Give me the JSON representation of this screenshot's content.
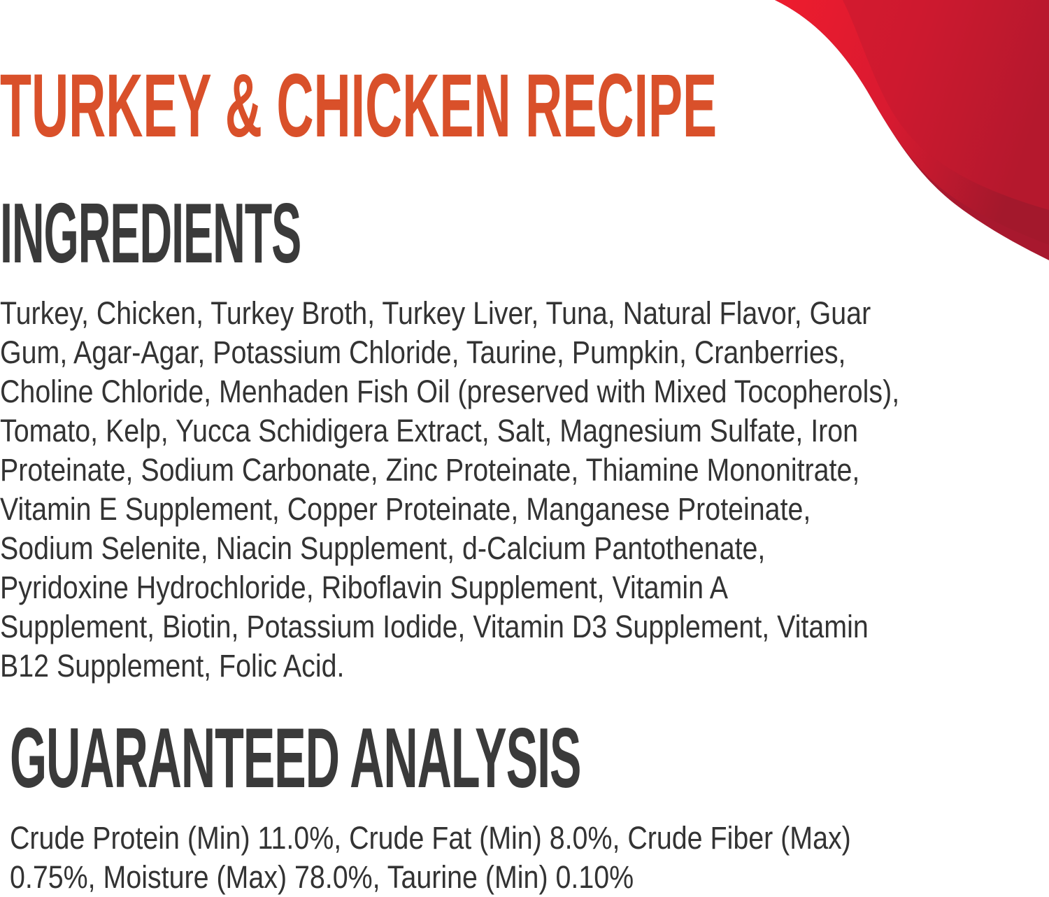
{
  "colors": {
    "accent_orange": "#d9502a",
    "heading": "#3a3a3a",
    "swoosh_red": "#e51b2d",
    "swoosh_dark": "#a8182e"
  },
  "recipe_title": "TURKEY & CHICKEN RECIPE",
  "ingredients": {
    "title": "INGREDIENTS",
    "lines": [
      "Turkey, Chicken, Turkey Broth, Turkey Liver, Tuna, Natural Flavor, Guar",
      "Gum, Agar-Agar, Potassium Chloride, Taurine, Pumpkin, Cranberries,",
      "Choline Chloride, Menhaden Fish Oil (preserved with Mixed Tocopherols),",
      "Tomato, Kelp, Yucca Schidigera Extract, Salt, Magnesium Sulfate, Iron",
      "Proteinate, Sodium Carbonate, Zinc Proteinate, Thiamine Mononitrate,",
      "Vitamin E Supplement, Copper Proteinate, Manganese Proteinate,",
      "Sodium Selenite, Niacin Supplement, d-Calcium Pantothenate,",
      "Pyridoxine Hydrochloride, Riboflavin Supplement, Vitamin A",
      "Supplement, Biotin, Potassium Iodide, Vitamin D3 Supplement, Vitamin",
      "B12 Supplement, Folic Acid."
    ]
  },
  "guaranteed_analysis": {
    "title": "GUARANTEED ANALYSIS",
    "lines": [
      "Crude Protein (Min) 11.0%, Crude Fat (Min) 8.0%, Crude Fiber (Max)",
      "0.75%, Moisture (Max) 78.0%, Taurine (Min) 0.10%"
    ]
  }
}
